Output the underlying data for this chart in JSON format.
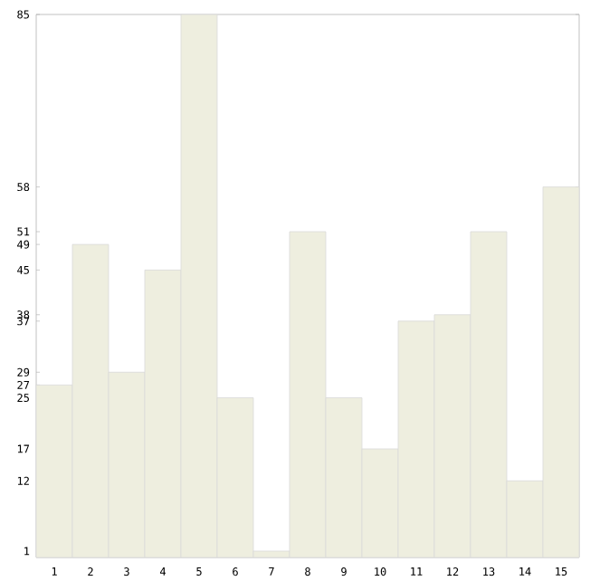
{
  "chart_data": {
    "type": "bar",
    "categories": [
      "1",
      "2",
      "3",
      "4",
      "5",
      "6",
      "7",
      "8",
      "9",
      "10",
      "11",
      "12",
      "13",
      "14",
      "15"
    ],
    "values": [
      27,
      49,
      29,
      45,
      85,
      25,
      1,
      51,
      25,
      17,
      37,
      38,
      51,
      12,
      58
    ],
    "color": "#eeeedf",
    "ylim": [
      0,
      85
    ],
    "yticks": [
      1,
      12,
      17,
      25,
      27,
      29,
      37,
      38,
      45,
      49,
      51,
      58,
      85
    ],
    "grid": false
  }
}
